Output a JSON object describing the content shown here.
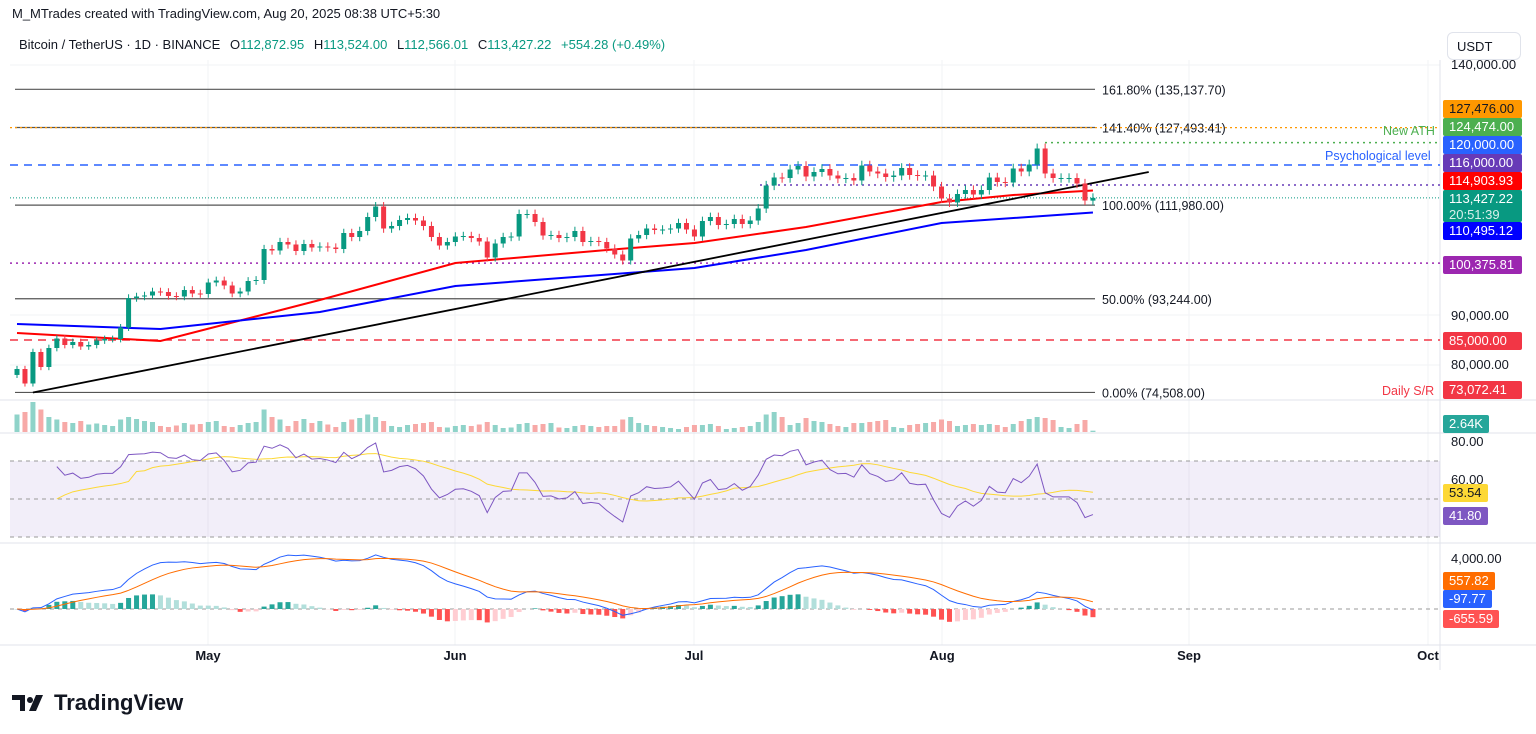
{
  "credit": "M_MTrades created with TradingView.com, Aug 20, 2025 08:38 UTC+5:30",
  "legend": {
    "symbol": "Bitcoin / TetherUS · 1D · BINANCE",
    "o_label": "O",
    "open": "112,872.95",
    "h_label": "H",
    "high": "113,524.00",
    "l_label": "L",
    "low": "112,566.01",
    "c_label": "C",
    "close": "113,427.22",
    "change": "+554.28 (+0.49%)"
  },
  "currency": "USDT",
  "brand": "TradingView",
  "chart_data": {
    "type": "candlestick",
    "start_date": "2025-04-07",
    "closes": [
      79.2,
      76.3,
      82.6,
      79.6,
      83.4,
      85.3,
      84.0,
      84.6,
      83.7,
      84.0,
      84.9,
      85.2,
      85.2,
      87.5,
      93.4,
      93.7,
      93.9,
      94.7,
      94.6,
      93.8,
      93.7,
      95.0,
      94.3,
      94.2,
      96.5,
      96.9,
      95.9,
      94.3,
      94.7,
      96.8,
      97.0,
      103.2,
      102.9,
      104.6,
      104.1,
      102.8,
      104.2,
      103.5,
      103.7,
      103.5,
      103.2,
      106.4,
      105.6,
      106.8,
      109.6,
      111.7,
      107.3,
      107.8,
      109.0,
      109.4,
      108.9,
      107.8,
      105.6,
      103.9,
      104.6,
      105.7,
      105.8,
      105.4,
      104.7,
      101.5,
      104.3,
      105.6,
      105.7,
      110.2,
      110.2,
      108.6,
      105.9,
      106.0,
      105.4,
      105.6,
      106.8,
      104.6,
      104.8,
      104.6,
      103.3,
      102.1,
      100.9,
      105.3,
      106.0,
      107.3,
      107.0,
      107.1,
      107.3,
      108.4,
      107.1,
      105.7,
      108.8,
      109.6,
      108.0,
      108.2,
      109.2,
      108.2,
      108.9,
      111.3,
      115.9,
      117.5,
      117.4,
      119.1,
      119.8,
      117.7,
      118.6,
      119.2,
      117.9,
      117.3,
      117.4,
      116.9,
      119.9,
      118.7,
      118.3,
      117.6,
      117.9,
      119.4,
      118.0,
      117.8,
      117.9,
      115.7,
      113.3,
      112.5,
      114.2,
      115.0,
      114.1,
      115.0,
      117.5,
      116.6,
      116.5,
      119.3,
      118.7,
      120.1,
      123.3,
      118.3,
      117.4,
      117.4,
      117.4,
      116.3,
      112.9,
      113.427
    ],
    "close_unit": "thousand USDT",
    "volumes_k": [
      35,
      40,
      60,
      45,
      30,
      25,
      20,
      18,
      22,
      15,
      17,
      14,
      12,
      25,
      30,
      26,
      22,
      20,
      12,
      10,
      13,
      18,
      15,
      16,
      20,
      22,
      12,
      10,
      14,
      18,
      20,
      45,
      30,
      25,
      12,
      22,
      26,
      18,
      22,
      15,
      10,
      20,
      25,
      28,
      35,
      30,
      22,
      12,
      10,
      14,
      16,
      18,
      20,
      10,
      9,
      12,
      14,
      12,
      15,
      20,
      14,
      8,
      9,
      16,
      18,
      14,
      16,
      18,
      9,
      8,
      12,
      14,
      12,
      10,
      12,
      12,
      25,
      30,
      18,
      14,
      12,
      10,
      8,
      6,
      10,
      14,
      14,
      16,
      12,
      6,
      8,
      10,
      12,
      20,
      35,
      40,
      30,
      14,
      18,
      28,
      22,
      20,
      16,
      12,
      10,
      18,
      18,
      20,
      22,
      24,
      10,
      8,
      14,
      16,
      18,
      20,
      25,
      22,
      12,
      14,
      16,
      14,
      16,
      14,
      10,
      16,
      22,
      26,
      30,
      28,
      24,
      10,
      8,
      16,
      24,
      2.64
    ],
    "ema_red": [
      [
        "2025-04-07",
        86.4
      ],
      [
        "2025-04-25",
        84.8
      ],
      [
        "2025-05-15",
        93.0
      ],
      [
        "2025-06-01",
        100.4
      ],
      [
        "2025-06-20",
        103.0
      ],
      [
        "2025-07-01",
        104.4
      ],
      [
        "2025-07-15",
        107.6
      ],
      [
        "2025-08-01",
        112.6
      ],
      [
        "2025-08-10",
        114.0
      ],
      [
        "2025-08-20",
        114.904
      ]
    ],
    "ema_blue": [
      [
        "2025-04-07",
        88.2
      ],
      [
        "2025-04-25",
        87.2
      ],
      [
        "2025-05-15",
        90.6
      ],
      [
        "2025-06-01",
        95.8
      ],
      [
        "2025-07-01",
        99.4
      ],
      [
        "2025-07-15",
        103.0
      ],
      [
        "2025-08-01",
        108.4
      ],
      [
        "2025-08-20",
        110.495
      ]
    ],
    "trendline": [
      [
        "2025-04-09",
        74.5
      ],
      [
        "2025-08-27",
        118.6
      ]
    ],
    "ylim": [
      70000,
      142000
    ],
    "y_ticks": [
      "140,000.00",
      "90,000.00",
      "80,000.00"
    ],
    "x_ticks": [
      "May",
      "Jun",
      "Jul",
      "Aug",
      "Sep",
      "Oct"
    ],
    "fib_levels": [
      {
        "label": "161.80% (135,137.70)",
        "value": 135137.7
      },
      {
        "label": "141.40% (127,493.41)",
        "value": 127493.41
      },
      {
        "label": "100.00% (111,980.00)",
        "value": 111980.0
      },
      {
        "label": "50.00% (93,244.00)",
        "value": 93244.0
      },
      {
        "label": "0.00% (74,508.00)",
        "value": 74508.0
      }
    ],
    "annotations": {
      "ath": "New ATH",
      "psych": "Psychological level",
      "sr": "Daily S/R"
    },
    "price_labels": [
      {
        "text": "127,476.00",
        "color": "#ff9800",
        "dark": true
      },
      {
        "text": "124,474.00",
        "color": "#4caf50"
      },
      {
        "text": "120,000.00",
        "color": "#2962ff"
      },
      {
        "text": "116,000.00",
        "color": "#673ab7"
      },
      {
        "text": "114,903.93",
        "color": "#ff0000"
      },
      {
        "text": "113,427.22",
        "color": "#089981",
        "sub": "20:51:39"
      },
      {
        "text": "110,495.12",
        "color": "#0000ff"
      },
      {
        "text": "100,375.81",
        "color": "#9c27b0"
      },
      {
        "text": "85,000.00",
        "color": "#f23645"
      },
      {
        "text": "73,072.41",
        "color": "#f23645"
      }
    ],
    "volume_label": {
      "text": "2.64K",
      "color": "#26a69a"
    },
    "rsi": {
      "ticks": [
        "80.00",
        "60.00"
      ],
      "value_label": "41.80",
      "signal_label": "53.54",
      "line_color": "#7e57c2",
      "signal_color": "#fdd835"
    },
    "macd": {
      "ticks": [
        "4,000.00"
      ],
      "signal_label": "557.82",
      "macd_label": "-97.77",
      "hist_label": "-655.59",
      "macd_color": "#2962ff",
      "signal_color": "#ff6d00"
    },
    "colors": {
      "up": "#089981",
      "down": "#f23645"
    }
  }
}
